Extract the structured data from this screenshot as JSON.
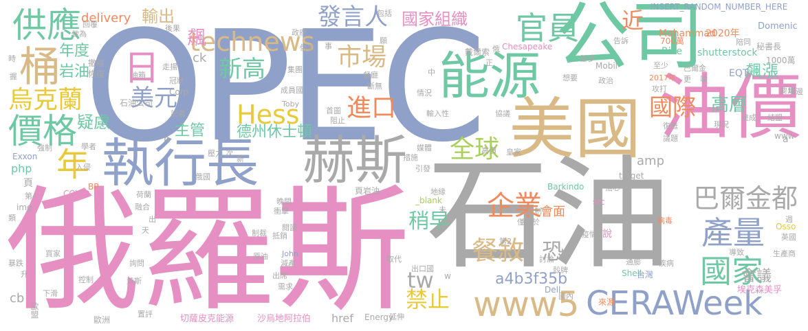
{
  "palette": {
    "blue": "#8fa0c9",
    "pink": "#e68fc3",
    "gray": "#a9a9a9",
    "green": "#6fc8a4",
    "tan": "#d9b985",
    "orange": "#f08a5d",
    "yellow": "#e8c93a",
    "lime": "#a8d05a"
  },
  "words": [
    {
      "text": "OPEC",
      "color": "blue"
    },
    {
      "text": "俄羅斯",
      "color": "pink"
    },
    {
      "text": "石油",
      "color": "gray"
    },
    {
      "text": "公司",
      "color": "green"
    },
    {
      "text": "油價",
      "color": "pink"
    },
    {
      "text": "美國",
      "color": "tan"
    },
    {
      "text": "能源",
      "color": "green"
    },
    {
      "text": "執行長",
      "color": "blue"
    },
    {
      "text": "赫斯",
      "color": "gray"
    },
    {
      "text": "CERAWeek",
      "color": "blue"
    },
    {
      "text": "供應",
      "color": "green"
    },
    {
      "text": "桶",
      "color": "tan"
    },
    {
      "text": "價格",
      "color": "green"
    },
    {
      "text": "烏克蘭",
      "color": "yellow"
    },
    {
      "text": "年",
      "color": "yellow"
    },
    {
      "text": "日",
      "color": "pink"
    },
    {
      "text": "美元",
      "color": "blue"
    },
    {
      "text": "Hess",
      "color": "yellow"
    },
    {
      "text": "新高",
      "color": "green"
    },
    {
      "text": "technews",
      "color": "tan"
    },
    {
      "text": "發言人",
      "color": "blue"
    },
    {
      "text": "市場",
      "color": "tan"
    },
    {
      "text": "進口",
      "color": "orange"
    },
    {
      "text": "國家組織",
      "color": "pink"
    },
    {
      "text": "官員",
      "color": "green"
    },
    {
      "text": "國際",
      "color": "orange"
    },
    {
      "text": "全球",
      "color": "lime"
    },
    {
      "text": "企業",
      "color": "orange"
    },
    {
      "text": "巴爾金都",
      "color": "gray"
    },
    {
      "text": "產量",
      "color": "blue"
    },
    {
      "text": "國家",
      "color": "green"
    },
    {
      "text": "www5",
      "color": "tan"
    },
    {
      "text": "禁止",
      "color": "yellow"
    },
    {
      "text": "餐敘",
      "color": "tan"
    },
    {
      "text": "稍早",
      "color": "green"
    },
    {
      "text": "tw",
      "color": "gray"
    },
    {
      "text": "飆漲",
      "color": "green"
    },
    {
      "text": "飆",
      "color": "pink"
    },
    {
      "text": "輸出",
      "color": "tan"
    },
    {
      "text": "近",
      "color": "orange"
    },
    {
      "text": "疑慮",
      "color": "green"
    },
    {
      "text": "主管",
      "color": "green"
    },
    {
      "text": "德州休士頓",
      "color": "green"
    },
    {
      "text": "會議",
      "color": "gray"
    },
    {
      "text": "高層",
      "color": "green"
    },
    {
      "text": "恐",
      "color": "gray"
    },
    {
      "text": "會面",
      "color": "orange"
    },
    {
      "text": "a4b3f35b",
      "color": "blue"
    },
    {
      "text": "年度",
      "color": "green"
    },
    {
      "text": "岩油",
      "color": "green"
    },
    {
      "text": "delivery",
      "color": "orange"
    },
    {
      "text": "INSERT_RANDOM_NUMBER_HERE",
      "color": "blue"
    },
    {
      "text": "Mohammad",
      "color": "orange"
    },
    {
      "text": "2020年",
      "color": "orange"
    },
    {
      "text": "Domenic",
      "color": "blue"
    },
    {
      "text": "shutterstock",
      "color": "green"
    },
    {
      "text": "Rice",
      "color": "green"
    },
    {
      "text": "1000萬",
      "color": "gray"
    },
    {
      "text": "EQT",
      "color": "blue"
    },
    {
      "text": "amp",
      "color": "gray"
    },
    {
      "text": "href",
      "color": "gray"
    },
    {
      "text": "Energy",
      "color": "gray"
    },
    {
      "text": "Barkindo",
      "color": "green"
    },
    {
      "text": "target",
      "color": "gray"
    },
    {
      "text": "Shell",
      "color": "green"
    },
    {
      "text": "Dell",
      "color": "blue"
    },
    {
      "text": "Exxon",
      "color": "blue"
    },
    {
      "text": "php",
      "color": "green"
    },
    {
      "text": "img",
      "color": "gray"
    },
    {
      "text": "COVID",
      "color": "pink"
    },
    {
      "text": "Chesapeake",
      "color": "pink"
    },
    {
      "text": "Mobil",
      "color": "gray"
    },
    {
      "text": "Toby",
      "color": "gray"
    },
    {
      "text": "John",
      "color": "blue"
    },
    {
      "text": "Corp",
      "color": "gray"
    },
    {
      "text": "cb",
      "color": "gray"
    },
    {
      "text": "ck",
      "color": "gray"
    },
    {
      "text": "n",
      "color": "gray"
    },
    {
      "text": "www",
      "color": "gray"
    },
    {
      "text": "src",
      "color": "pink"
    },
    {
      "text": "_blank",
      "color": "lime"
    },
    {
      "text": "BP",
      "color": "orange"
    },
    {
      "text": "Osso",
      "color": "yellow"
    },
    {
      "text": "a",
      "color": "gray"
    },
    {
      "text": "w",
      "color": "gray"
    },
    {
      "text": "切薩皮克能源",
      "color": "pink"
    },
    {
      "text": "沙烏地阿拉伯",
      "color": "pink"
    },
    {
      "text": "埃克森美孚",
      "color": "pink"
    },
    {
      "text": "石油公司",
      "color": "gray"
    },
    {
      "text": "秘書長",
      "color": "gray"
    },
    {
      "text": "戴爾索",
      "color": "gray"
    },
    {
      "text": "頁岩油",
      "color": "gray"
    },
    {
      "text": "台灣",
      "color": "blue"
    },
    {
      "text": "來源",
      "color": "orange"
    },
    {
      "text": "歐盟",
      "color": "gray"
    },
    {
      "text": "歐洲",
      "color": "gray"
    },
    {
      "text": "包括",
      "color": "gray"
    },
    {
      "text": "做為",
      "color": "gray"
    },
    {
      "text": "回覆",
      "color": "gray"
    },
    {
      "text": "政府",
      "color": "gray"
    },
    {
      "text": "後果",
      "color": "gray"
    },
    {
      "text": "撤離",
      "color": "gray"
    },
    {
      "text": "恢復",
      "color": "gray"
    },
    {
      "text": "走揚",
      "color": "gray"
    },
    {
      "text": "冠狀",
      "color": "gray"
    },
    {
      "text": "記者",
      "color": "gray"
    },
    {
      "text": "學者",
      "color": "gray"
    },
    {
      "text": "強制",
      "color": "gray"
    },
    {
      "text": "入侵",
      "color": "gray"
    },
    {
      "text": "壓力",
      "color": "gray"
    },
    {
      "text": "次",
      "color": "gray"
    },
    {
      "text": "新",
      "color": "gray"
    },
    {
      "text": "俄國",
      "color": "gray"
    },
    {
      "text": "第4",
      "color": "gray"
    },
    {
      "text": "融合",
      "color": "gray"
    },
    {
      "text": "類",
      "color": "gray"
    },
    {
      "text": "頁",
      "color": "gray"
    },
    {
      "text": "天",
      "color": "gray"
    },
    {
      "text": "出",
      "color": "gray"
    },
    {
      "text": "晚間",
      "color": "gray"
    },
    {
      "text": "衝擊",
      "color": "gray"
    },
    {
      "text": "制裁",
      "color": "gray"
    },
    {
      "text": "抵銷",
      "color": "gray"
    },
    {
      "text": "原油",
      "color": "gray"
    },
    {
      "text": "減產",
      "color": "gray"
    },
    {
      "text": "需求",
      "color": "gray"
    },
    {
      "text": "出席",
      "color": "gray"
    },
    {
      "text": "詢問",
      "color": "gray"
    },
    {
      "text": "暴跌",
      "color": "gray"
    },
    {
      "text": "升",
      "color": "gray"
    },
    {
      "text": "控制",
      "color": "gray"
    },
    {
      "text": "下滑",
      "color": "gray"
    },
    {
      "text": "萊斯",
      "color": "gray"
    },
    {
      "text": "置評",
      "color": "gray"
    },
    {
      "text": "買家",
      "color": "gray"
    },
    {
      "text": "成員國",
      "color": "gray"
    },
    {
      "text": "集團",
      "color": "gray"
    },
    {
      "text": "首圖",
      "color": "gray"
    },
    {
      "text": "阻止",
      "color": "gray"
    },
    {
      "text": "荷蘭",
      "color": "gray"
    },
    {
      "text": "閱讀",
      "color": "gray"
    },
    {
      "text": "地緣",
      "color": "gray"
    },
    {
      "text": "未",
      "color": "gray"
    },
    {
      "text": "取代",
      "color": "gray"
    },
    {
      "text": "出口國",
      "color": "gray"
    },
    {
      "text": "延伸",
      "color": "gray"
    },
    {
      "text": "第2",
      "color": "gray"
    },
    {
      "text": "僅次於",
      "color": "gray"
    },
    {
      "text": "抵制",
      "color": "gray"
    },
    {
      "text": "討論",
      "color": "gray"
    },
    {
      "text": "殼牌",
      "color": "gray"
    },
    {
      "text": "國內",
      "color": "gray"
    },
    {
      "text": "疫情",
      "color": "gray"
    },
    {
      "text": "說",
      "color": "gray"
    },
    {
      "text": "疾病",
      "color": "gray"
    },
    {
      "text": "病毒",
      "color": "gray"
    },
    {
      "text": "通膨",
      "color": "gray"
    },
    {
      "text": "導致",
      "color": "gray"
    },
    {
      "text": "週",
      "color": "gray"
    },
    {
      "text": "英國",
      "color": "gray"
    },
    {
      "text": "生產商",
      "color": "gray"
    },
    {
      "text": "達成",
      "color": "gray"
    },
    {
      "text": "議題",
      "color": "gray"
    },
    {
      "text": "復甦",
      "color": "gray"
    },
    {
      "text": "現況",
      "color": "gray"
    },
    {
      "text": "結盟",
      "color": "gray"
    },
    {
      "text": "場邊",
      "color": "gray"
    },
    {
      "text": "要角",
      "color": "gray"
    },
    {
      "text": "擔心",
      "color": "gray"
    },
    {
      "text": "皇家",
      "color": "gray"
    },
    {
      "text": "高價",
      "color": "gray"
    },
    {
      "text": "媒體",
      "color": "gray"
    },
    {
      "text": "措施",
      "color": "gray"
    },
    {
      "text": "引發",
      "color": "gray"
    },
    {
      "text": "輸入性",
      "color": "gray"
    },
    {
      "text": "協議",
      "color": "gray"
    },
    {
      "text": "情況",
      "color": "gray"
    },
    {
      "text": "斷無",
      "color": "gray"
    },
    {
      "text": "餐廳",
      "color": "gray"
    },
    {
      "text": "願",
      "color": "gray"
    },
    {
      "text": "事",
      "color": "gray"
    },
    {
      "text": "俄氣",
      "color": "gray"
    },
    {
      "text": "中",
      "color": "gray"
    },
    {
      "text": "正",
      "color": "gray"
    },
    {
      "text": "俄",
      "color": "gray"
    },
    {
      "text": "腳步",
      "color": "gray"
    },
    {
      "text": "想要",
      "color": "gray"
    },
    {
      "text": "政治",
      "color": "gray"
    },
    {
      "text": "攻打",
      "color": "gray"
    },
    {
      "text": "更",
      "color": "gray"
    },
    {
      "text": "喻",
      "color": "gray"
    },
    {
      "text": "巴爾金",
      "color": "gray"
    },
    {
      "text": "至少",
      "color": "gray"
    },
    {
      "text": "700萬",
      "color": "orange"
    },
    {
      "text": "陪同",
      "color": "gray"
    },
    {
      "text": "告訴",
      "color": "gray"
    },
    {
      "text": "2017年",
      "color": "orange"
    },
    {
      "text": "時",
      "color": "gray"
    },
    {
      "text": "握",
      "color": "gray"
    },
    {
      "text": "油箱",
      "color": "gray"
    }
  ]
}
